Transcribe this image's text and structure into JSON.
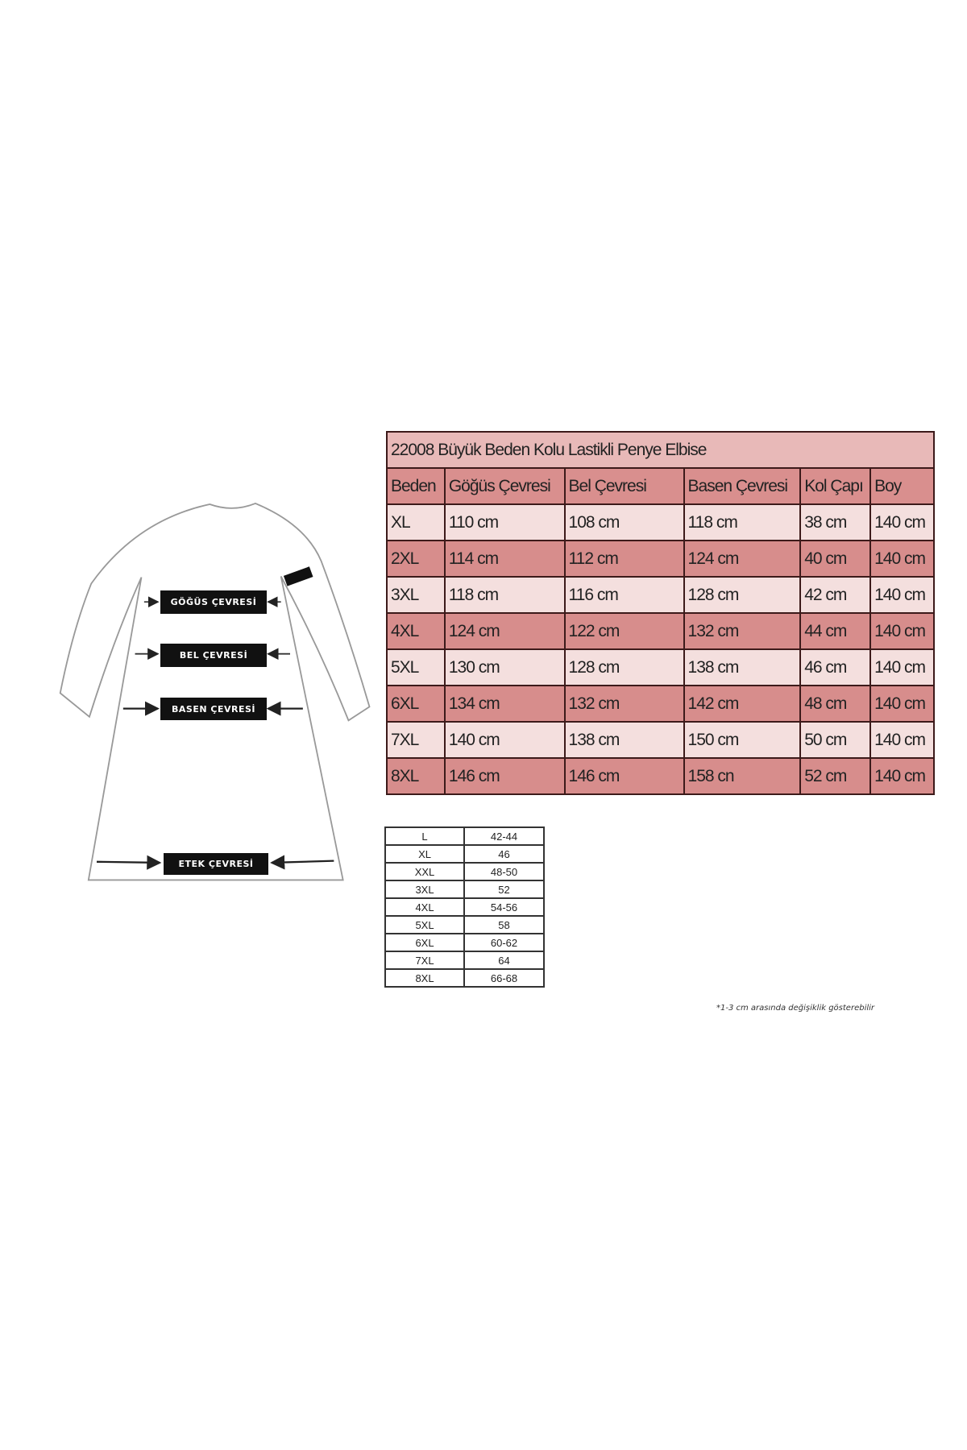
{
  "diagram": {
    "labels": {
      "chest": "GÖĞÜS ÇEVRESİ",
      "waist": "BEL ÇEVRESİ",
      "hip": "BASEN ÇEVRESİ",
      "hem": "ETEK ÇEVRESİ"
    }
  },
  "main_table": {
    "title": "22008 Büyük Beden Kolu Lastikli Penye Elbise",
    "headers": [
      "Beden",
      "Göğüs Çevresi",
      "Bel Çevresi",
      "Basen Çevresi",
      "Kol Çapı",
      "Boy"
    ],
    "rows": [
      [
        "XL",
        "110 cm",
        "108 cm",
        "118 cm",
        "38 cm",
        "140 cm"
      ],
      [
        "2XL",
        "114 cm",
        "112 cm",
        "124 cm",
        "40 cm",
        "140 cm"
      ],
      [
        "3XL",
        "118 cm",
        "116 cm",
        "128 cm",
        "42 cm",
        "140 cm"
      ],
      [
        "4XL",
        "124 cm",
        "122 cm",
        "132 cm",
        "44 cm",
        "140 cm"
      ],
      [
        "5XL",
        "130 cm",
        "128 cm",
        "138 cm",
        "46 cm",
        "140 cm"
      ],
      [
        "6XL",
        "134 cm",
        "132 cm",
        "142 cm",
        "48 cm",
        "140 cm"
      ],
      [
        "7XL",
        "140 cm",
        "138 cm",
        "150 cm",
        "50 cm",
        "140 cm"
      ],
      [
        "8XL",
        "146 cm",
        "146 cm",
        "158 cn",
        "52 cm",
        "140 cm"
      ]
    ],
    "colors": {
      "title": "#e8b9b8",
      "header": "#d98f8e",
      "light_row": "#f4dfde",
      "dark_row": "#d78d8c",
      "border": "#3c1a1a"
    }
  },
  "size_table": {
    "rows": [
      [
        "L",
        "42-44"
      ],
      [
        "XL",
        "46"
      ],
      [
        "XXL",
        "48-50"
      ],
      [
        "3XL",
        "52"
      ],
      [
        "4XL",
        "54-56"
      ],
      [
        "5XL",
        "58"
      ],
      [
        "6XL",
        "60-62"
      ],
      [
        "7XL",
        "64"
      ],
      [
        "8XL",
        "66-68"
      ]
    ]
  },
  "footnote": "*1-3 cm arasında değişiklik gösterebilir"
}
